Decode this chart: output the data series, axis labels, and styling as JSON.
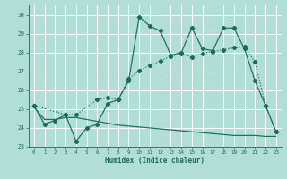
{
  "xlabel": "Humidex (Indice chaleur)",
  "background_color": "#b2ded8",
  "grid_color": "#ffffff",
  "line_color": "#1a6b5a",
  "xlim": [
    -0.5,
    23.5
  ],
  "ylim": [
    23.0,
    30.5
  ],
  "yticks": [
    23,
    24,
    25,
    26,
    27,
    28,
    29,
    30
  ],
  "xticks": [
    0,
    1,
    2,
    3,
    4,
    5,
    6,
    7,
    8,
    9,
    10,
    11,
    12,
    13,
    14,
    15,
    16,
    17,
    18,
    19,
    20,
    21,
    22,
    23
  ],
  "line1_x": [
    0,
    1,
    2,
    3,
    4,
    5,
    6,
    7,
    8,
    9,
    10,
    11,
    12,
    13,
    14,
    15,
    16,
    17,
    18,
    19,
    20,
    21,
    22,
    23
  ],
  "line1_y": [
    25.2,
    24.2,
    24.4,
    24.7,
    23.3,
    24.0,
    24.2,
    25.3,
    25.5,
    26.5,
    29.9,
    29.4,
    29.15,
    27.85,
    28.0,
    29.3,
    28.2,
    28.1,
    29.3,
    29.3,
    28.2,
    26.5,
    25.2,
    23.8
  ],
  "line2_x": [
    0,
    3,
    4,
    6,
    7,
    8,
    9,
    10,
    11,
    12,
    13,
    14,
    15,
    16,
    17,
    18,
    19,
    20,
    21,
    22,
    23
  ],
  "line2_y": [
    25.2,
    24.7,
    24.7,
    25.5,
    25.6,
    25.5,
    26.6,
    27.05,
    27.3,
    27.55,
    27.8,
    27.95,
    27.75,
    27.95,
    28.05,
    28.15,
    28.25,
    28.3,
    27.5,
    25.2,
    23.8
  ],
  "line3_x": [
    0,
    1,
    2,
    3,
    4,
    5,
    6,
    7,
    8,
    9,
    10,
    11,
    12,
    13,
    14,
    15,
    16,
    17,
    18,
    19,
    20,
    21,
    22,
    23
  ],
  "line3_y": [
    25.1,
    24.45,
    24.45,
    24.55,
    24.55,
    24.45,
    24.35,
    24.25,
    24.15,
    24.1,
    24.05,
    24.0,
    23.95,
    23.9,
    23.85,
    23.8,
    23.75,
    23.7,
    23.65,
    23.6,
    23.6,
    23.6,
    23.55,
    23.55
  ]
}
